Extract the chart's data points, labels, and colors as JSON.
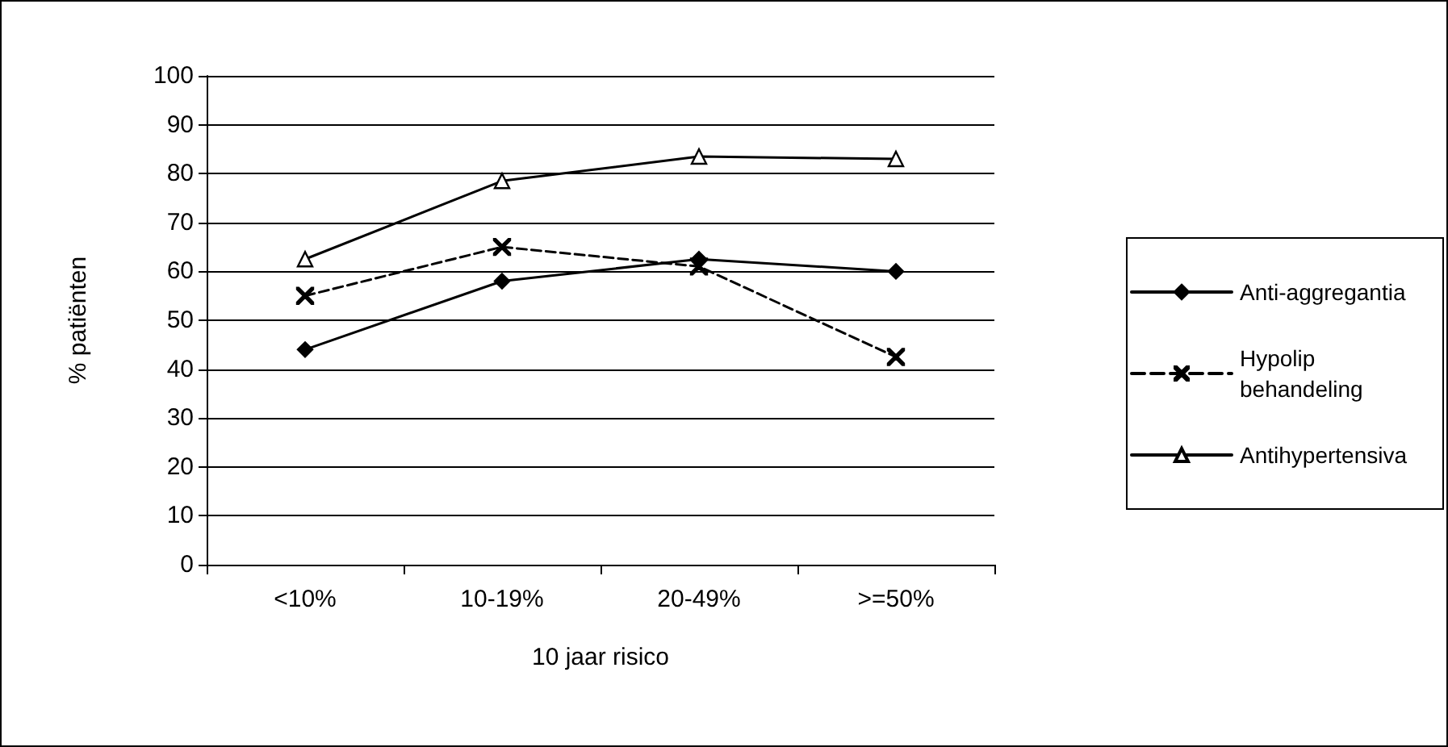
{
  "chart_data": {
    "type": "line",
    "xlabel": "10 jaar risico",
    "ylabel": "% patiënten",
    "categories": [
      "<10%",
      "10-19%",
      "20-49%",
      ">=50%"
    ],
    "series": [
      {
        "name": "Anti-aggregantia",
        "color": "#000000",
        "marker": "diamond",
        "line_style": "solid",
        "values": [
          44,
          58,
          62.5,
          60
        ]
      },
      {
        "name": "Hypolip behandeling",
        "color": "#000000",
        "marker": "cross",
        "line_style": "dashed",
        "values": [
          55,
          65,
          61,
          42.5
        ]
      },
      {
        "name": "Antihypertensiva",
        "color": "#000000",
        "marker": "triangle",
        "line_style": "solid",
        "values": [
          62.5,
          78.5,
          83.5,
          83
        ]
      }
    ],
    "ylim": [
      0,
      100
    ],
    "yticks": [
      0,
      10,
      20,
      30,
      40,
      50,
      60,
      70,
      80,
      90,
      100
    ],
    "grid": "y",
    "legend": "right"
  }
}
